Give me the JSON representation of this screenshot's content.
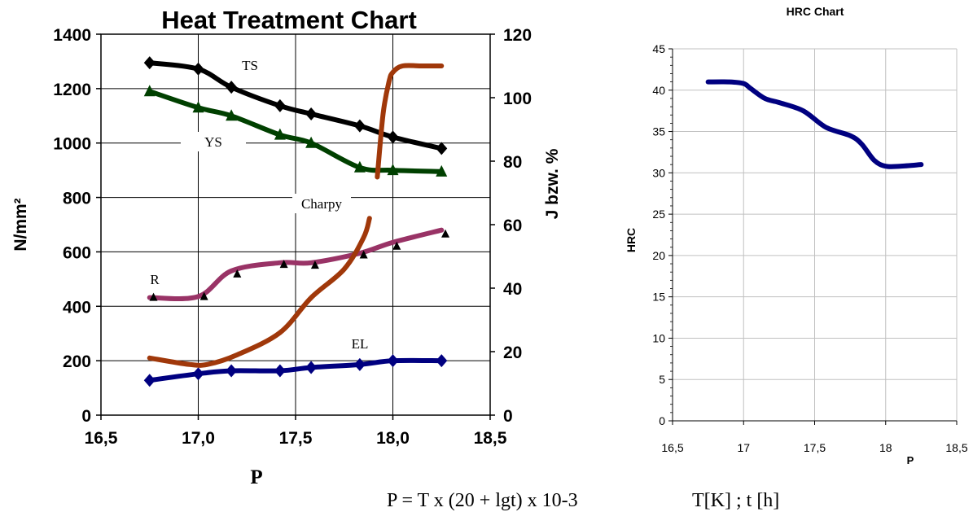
{
  "chart_data": [
    {
      "type": "line",
      "title": "Heat Treatment Chart",
      "xlabel": "P",
      "ylabel_left": "N/mm²",
      "ylabel_right": "J bzw. %",
      "xlim": [
        16.5,
        18.5
      ],
      "ylim_left": [
        0,
        1400
      ],
      "ylim_right": [
        0,
        120
      ],
      "x_ticks": [
        "16,5",
        "17,0",
        "17,5",
        "18,0",
        "18,5"
      ],
      "y_ticks_left": [
        "0",
        "200",
        "400",
        "600",
        "800",
        "1000",
        "1200",
        "1400"
      ],
      "y_ticks_right": [
        "0",
        "20",
        "40",
        "60",
        "80",
        "100",
        "120"
      ],
      "grid": true,
      "series": [
        {
          "name": "TS",
          "axis": "left",
          "color": "#000000",
          "marker": "diamond",
          "x": [
            16.75,
            17.0,
            17.17,
            17.42,
            17.58,
            17.83,
            18.0,
            18.25
          ],
          "y": [
            1295,
            1272,
            1205,
            1137,
            1107,
            1063,
            1022,
            980
          ]
        },
        {
          "name": "YS",
          "axis": "left",
          "color": "#004000",
          "marker": "triangle",
          "x": [
            16.75,
            17.0,
            17.17,
            17.42,
            17.58,
            17.83,
            18.0,
            18.25
          ],
          "y": [
            1190,
            1130,
            1100,
            1030,
            1000,
            910,
            900,
            895
          ]
        },
        {
          "name": "R",
          "axis": "left",
          "color": "#993366",
          "marker": "none",
          "x": [
            16.75,
            17.0,
            17.17,
            17.42,
            17.58,
            17.83,
            18.0,
            18.25
          ],
          "y": [
            432,
            436,
            530,
            560,
            560,
            595,
            635,
            680
          ]
        },
        {
          "name": "R",
          "axis": "left",
          "color": "#000000",
          "marker": "triangle",
          "x": [
            16.77,
            17.03,
            17.2,
            17.44,
            17.6,
            17.85,
            18.02,
            18.27
          ],
          "y": [
            432,
            435,
            518,
            553,
            550,
            588,
            620,
            665
          ]
        },
        {
          "name": "EL",
          "axis": "left",
          "color": "#000080",
          "marker": "diamond",
          "x": [
            16.75,
            17.0,
            17.17,
            17.42,
            17.58,
            17.83,
            18.0,
            18.25
          ],
          "y": [
            128,
            152,
            163,
            163,
            175,
            186,
            200,
            200
          ]
        },
        {
          "name": "Charpy",
          "axis": "right",
          "color": "#A0380A",
          "marker": "none",
          "x": [
            16.75,
            16.95,
            17.05,
            17.2,
            17.42,
            17.58,
            17.75,
            17.85,
            17.88
          ],
          "y": [
            18,
            16,
            16,
            19,
            26,
            37,
            46,
            56,
            62
          ]
        },
        {
          "name": "Charpy",
          "axis": "right",
          "color": "#A0380A",
          "marker": "none",
          "x": [
            17.92,
            17.95,
            17.98,
            18.0,
            18.05,
            18.15,
            18.25
          ],
          "y": [
            75,
            95,
            105,
            108,
            110,
            110,
            110
          ]
        }
      ],
      "annotations": [
        "TS",
        "YS",
        "Charpy",
        "R",
        "EL"
      ]
    },
    {
      "type": "line",
      "title": "HRC Chart",
      "xlabel": "P",
      "ylabel": "HRC",
      "xlim": [
        16.5,
        18.5
      ],
      "ylim": [
        0,
        45
      ],
      "x_ticks": [
        "16,5",
        "17",
        "17,5",
        "18",
        "18,5"
      ],
      "y_ticks": [
        "0",
        "5",
        "10",
        "15",
        "20",
        "25",
        "30",
        "35",
        "40",
        "45"
      ],
      "grid": true,
      "series": [
        {
          "name": "HRC",
          "color": "#000080",
          "x": [
            16.75,
            16.9,
            17.0,
            17.05,
            17.15,
            17.25,
            17.42,
            17.58,
            17.75,
            17.83,
            17.92,
            18.0,
            18.1,
            18.25
          ],
          "y": [
            41,
            41,
            40.8,
            40.2,
            39,
            38.5,
            37.5,
            35.5,
            34.5,
            33.5,
            31.5,
            30.8,
            30.8,
            31
          ]
        }
      ]
    }
  ],
  "formula": "P = T x (20 + lgt) x 10-3",
  "units": "T[K] ; t [h]"
}
